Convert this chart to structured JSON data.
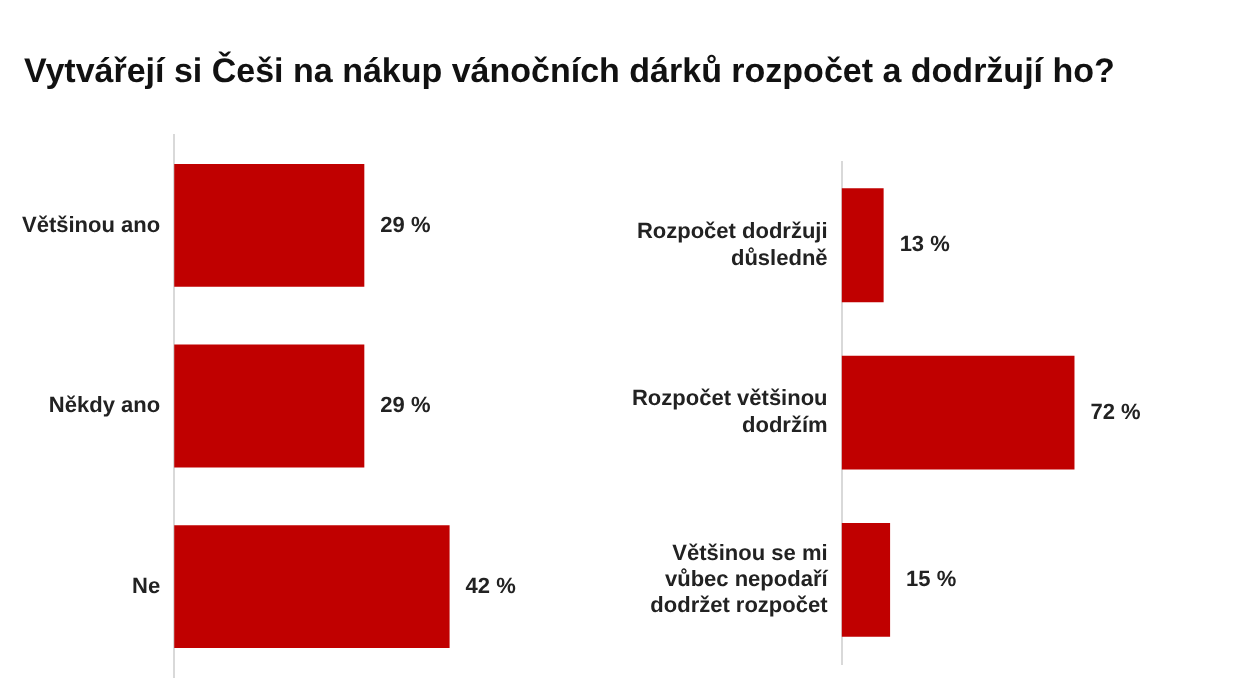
{
  "chart_data": [
    {
      "type": "bar",
      "orientation": "horizontal",
      "title": "Vytvářejí si Češi na nákup vánočních dárků rozpočet a dodržují ho?",
      "categories": [
        "Většinou ano",
        "Někdy ano",
        "Ne"
      ],
      "values": [
        29,
        29,
        42
      ],
      "value_labels": [
        "29 %",
        "29 %",
        "42 %"
      ],
      "color": "#c00000",
      "grid": false,
      "legend": false,
      "tick_labels": "y"
    },
    {
      "type": "bar",
      "orientation": "horizontal",
      "categories": [
        "Rozpočet dodržuji důsledně",
        "Rozpočet většinou dodržím",
        "Většinou se mi vůbec nepodaří dodržet rozpočet"
      ],
      "values": [
        13,
        72,
        15
      ],
      "value_labels": [
        "13 %",
        "72 %",
        "15 %"
      ],
      "color": "#c00000",
      "grid": false,
      "legend": false,
      "tick_labels": "y"
    }
  ]
}
